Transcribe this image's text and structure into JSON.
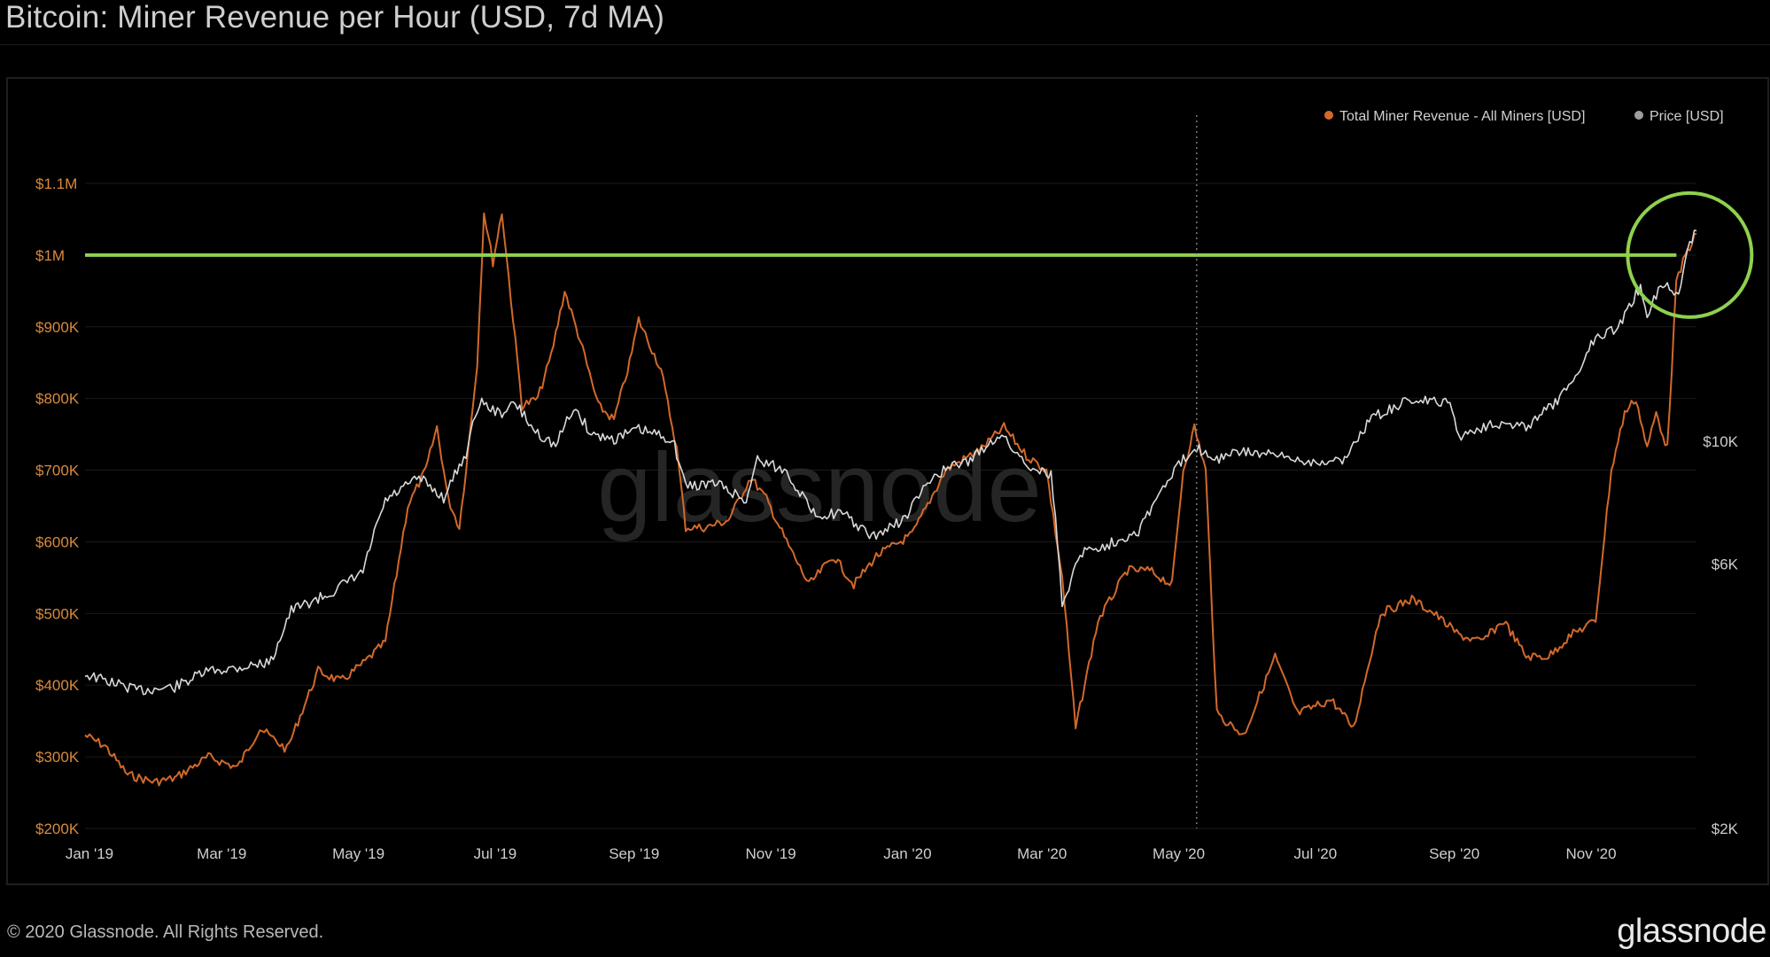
{
  "title": "Bitcoin: Miner Revenue per Hour (USD, 7d MA)",
  "footer": {
    "copyright": "© 2020 Glassnode. All Rights Reserved.",
    "logo": "glassnode"
  },
  "watermark": "glassnode",
  "colors": {
    "background": "#000000",
    "revenue": "#d2692a",
    "price": "#d9d9d9",
    "revenue_axis": "#d98a3c",
    "price_axis": "#cccccc",
    "highlight": "#8fd14f",
    "grid": "#1a1a1a",
    "plot_border": "#2a2a2a"
  },
  "chart_data": {
    "type": "line",
    "title": "Bitcoin: Miner Revenue per Hour (USD, 7d MA)",
    "legend_position": "top-right",
    "grid": true,
    "x_ticks": [
      "Jan '19",
      "Mar '19",
      "May '19",
      "Jul '19",
      "Sep '19",
      "Nov '19",
      "Jan '20",
      "Mar '20",
      "May '20",
      "Jul '20",
      "Sep '20",
      "Nov '20"
    ],
    "x_range": [
      "2019-01-01",
      "2020-12-20"
    ],
    "y_left": {
      "ticks": [
        200000,
        300000,
        400000,
        500000,
        600000,
        700000,
        800000,
        900000,
        1000000,
        1100000
      ],
      "tick_labels": [
        "$200K",
        "$300K",
        "$400K",
        "$500K",
        "$600K",
        "$700K",
        "$800K",
        "$900K",
        "$1M",
        "$1.1M"
      ],
      "range": [
        200000,
        1100000
      ]
    },
    "y_right": {
      "scale": "log",
      "ticks": [
        2000,
        6000,
        10000
      ],
      "tick_labels": [
        "$2K",
        "$6K",
        "$10K"
      ],
      "range": [
        2000,
        30000
      ]
    },
    "series": [
      {
        "name": "Total Miner Revenue - All Miners [USD]",
        "axis": "left",
        "points": [
          [
            "2019-01-01",
            330000
          ],
          [
            "2019-01-10",
            315000
          ],
          [
            "2019-01-20",
            275000
          ],
          [
            "2019-02-01",
            265000
          ],
          [
            "2019-02-10",
            270000
          ],
          [
            "2019-02-25",
            300000
          ],
          [
            "2019-03-10",
            285000
          ],
          [
            "2019-03-20",
            340000
          ],
          [
            "2019-04-01",
            310000
          ],
          [
            "2019-04-15",
            420000
          ],
          [
            "2019-04-25",
            405000
          ],
          [
            "2019-05-05",
            430000
          ],
          [
            "2019-05-15",
            460000
          ],
          [
            "2019-05-25",
            650000
          ],
          [
            "2019-06-02",
            700000
          ],
          [
            "2019-06-07",
            760000
          ],
          [
            "2019-06-12",
            660000
          ],
          [
            "2019-06-17",
            620000
          ],
          [
            "2019-06-21",
            730000
          ],
          [
            "2019-06-25",
            850000
          ],
          [
            "2019-06-28",
            1060000
          ],
          [
            "2019-07-02",
            990000
          ],
          [
            "2019-07-06",
            1060000
          ],
          [
            "2019-07-10",
            940000
          ],
          [
            "2019-07-15",
            790000
          ],
          [
            "2019-07-22",
            800000
          ],
          [
            "2019-07-28",
            860000
          ],
          [
            "2019-08-03",
            950000
          ],
          [
            "2019-08-10",
            880000
          ],
          [
            "2019-08-18",
            790000
          ],
          [
            "2019-08-25",
            770000
          ],
          [
            "2019-09-01",
            850000
          ],
          [
            "2019-09-05",
            910000
          ],
          [
            "2019-09-15",
            840000
          ],
          [
            "2019-09-22",
            730000
          ],
          [
            "2019-09-26",
            620000
          ],
          [
            "2019-10-05",
            620000
          ],
          [
            "2019-10-15",
            630000
          ],
          [
            "2019-10-25",
            690000
          ],
          [
            "2019-11-01",
            660000
          ],
          [
            "2019-11-10",
            600000
          ],
          [
            "2019-11-20",
            540000
          ],
          [
            "2019-12-01",
            580000
          ],
          [
            "2019-12-10",
            540000
          ],
          [
            "2019-12-20",
            580000
          ],
          [
            "2020-01-05",
            610000
          ],
          [
            "2020-01-20",
            700000
          ],
          [
            "2020-02-05",
            730000
          ],
          [
            "2020-02-15",
            760000
          ],
          [
            "2020-02-25",
            720000
          ],
          [
            "2020-03-05",
            700000
          ],
          [
            "2020-03-12",
            550000
          ],
          [
            "2020-03-18",
            340000
          ],
          [
            "2020-03-28",
            490000
          ],
          [
            "2020-04-10",
            560000
          ],
          [
            "2020-04-20",
            560000
          ],
          [
            "2020-04-30",
            540000
          ],
          [
            "2020-05-05",
            700000
          ],
          [
            "2020-05-10",
            760000
          ],
          [
            "2020-05-15",
            700000
          ],
          [
            "2020-05-20",
            360000
          ],
          [
            "2020-06-01",
            330000
          ],
          [
            "2020-06-15",
            440000
          ],
          [
            "2020-06-25",
            360000
          ],
          [
            "2020-07-10",
            380000
          ],
          [
            "2020-07-20",
            340000
          ],
          [
            "2020-08-01",
            500000
          ],
          [
            "2020-08-15",
            520000
          ],
          [
            "2020-08-25",
            500000
          ],
          [
            "2020-09-05",
            470000
          ],
          [
            "2020-09-15",
            460000
          ],
          [
            "2020-09-25",
            490000
          ],
          [
            "2020-10-05",
            440000
          ],
          [
            "2020-10-15",
            440000
          ],
          [
            "2020-10-25",
            470000
          ],
          [
            "2020-11-05",
            490000
          ],
          [
            "2020-11-12",
            700000
          ],
          [
            "2020-11-18",
            780000
          ],
          [
            "2020-11-23",
            800000
          ],
          [
            "2020-11-28",
            730000
          ],
          [
            "2020-12-02",
            780000
          ],
          [
            "2020-12-07",
            730000
          ],
          [
            "2020-12-11",
            960000
          ],
          [
            "2020-12-15",
            1000000
          ],
          [
            "2020-12-20",
            1030000
          ]
        ]
      },
      {
        "name": "Price [USD]",
        "axis": "right",
        "points": [
          [
            "2019-01-01",
            3800
          ],
          [
            "2019-01-10",
            3700
          ],
          [
            "2019-01-25",
            3550
          ],
          [
            "2019-02-10",
            3600
          ],
          [
            "2019-02-25",
            3850
          ],
          [
            "2019-03-10",
            3900
          ],
          [
            "2019-03-25",
            4000
          ],
          [
            "2019-04-03",
            4950
          ],
          [
            "2019-04-20",
            5300
          ],
          [
            "2019-05-05",
            5800
          ],
          [
            "2019-05-15",
            7800
          ],
          [
            "2019-05-30",
            8600
          ],
          [
            "2019-06-10",
            7900
          ],
          [
            "2019-06-20",
            9500
          ],
          [
            "2019-06-26",
            11800
          ],
          [
            "2019-07-05",
            11200
          ],
          [
            "2019-07-12",
            11700
          ],
          [
            "2019-07-20",
            10500
          ],
          [
            "2019-07-30",
            9800
          ],
          [
            "2019-08-07",
            11500
          ],
          [
            "2019-08-15",
            10300
          ],
          [
            "2019-08-25",
            10100
          ],
          [
            "2019-09-05",
            10500
          ],
          [
            "2019-09-20",
            10100
          ],
          [
            "2019-09-26",
            8300
          ],
          [
            "2019-10-10",
            8400
          ],
          [
            "2019-10-23",
            7800
          ],
          [
            "2019-10-28",
            9300
          ],
          [
            "2019-11-10",
            8800
          ],
          [
            "2019-11-22",
            7400
          ],
          [
            "2019-12-05",
            7400
          ],
          [
            "2019-12-18",
            6700
          ],
          [
            "2020-01-01",
            7200
          ],
          [
            "2020-01-15",
            8700
          ],
          [
            "2020-02-01",
            9300
          ],
          [
            "2020-02-13",
            10300
          ],
          [
            "2020-02-25",
            9100
          ],
          [
            "2020-03-07",
            8700
          ],
          [
            "2020-03-12",
            5000
          ],
          [
            "2020-03-20",
            6300
          ],
          [
            "2020-04-01",
            6500
          ],
          [
            "2020-04-15",
            6900
          ],
          [
            "2020-04-30",
            8700
          ],
          [
            "2020-05-10",
            9800
          ],
          [
            "2020-05-20",
            9300
          ],
          [
            "2020-06-01",
            9600
          ],
          [
            "2020-06-15",
            9400
          ],
          [
            "2020-07-01",
            9200
          ],
          [
            "2020-07-15",
            9200
          ],
          [
            "2020-07-28",
            11000
          ],
          [
            "2020-08-15",
            11900
          ],
          [
            "2020-09-01",
            11700
          ],
          [
            "2020-09-05",
            10200
          ],
          [
            "2020-09-20",
            10800
          ],
          [
            "2020-10-05",
            10600
          ],
          [
            "2020-10-20",
            11900
          ],
          [
            "2020-10-28",
            13300
          ],
          [
            "2020-11-05",
            15500
          ],
          [
            "2020-11-15",
            16000
          ],
          [
            "2020-11-25",
            19000
          ],
          [
            "2020-11-28",
            17000
          ],
          [
            "2020-12-05",
            19300
          ],
          [
            "2020-12-12",
            18300
          ],
          [
            "2020-12-17",
            23000
          ],
          [
            "2020-12-20",
            24000
          ]
        ]
      }
    ],
    "annotations": {
      "horizontal_line": {
        "axis": "left",
        "value": 1000000
      },
      "vertical_dotted_line": {
        "date": "2020-05-11"
      },
      "circle_highlight": {
        "date": "2020-12-15",
        "value": 1000000
      }
    }
  }
}
